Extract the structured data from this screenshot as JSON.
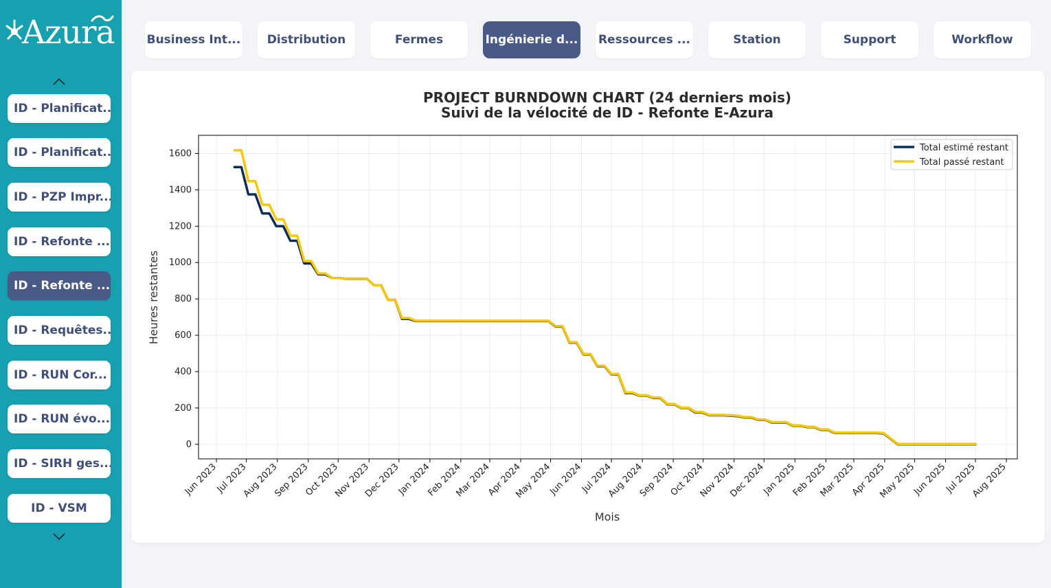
{
  "app": {
    "logo_text": "Azura"
  },
  "sidebar": {
    "items": [
      {
        "label": "ID - Planificat...",
        "active": false
      },
      {
        "label": "ID - Planificat...",
        "active": false
      },
      {
        "label": "ID - PZP Impr...",
        "active": false
      },
      {
        "label": "ID - Refonte ...",
        "active": false
      },
      {
        "label": "ID - Refonte ...",
        "active": true
      },
      {
        "label": "ID - Requêtes...",
        "active": false
      },
      {
        "label": "ID - RUN Cor...",
        "active": false
      },
      {
        "label": "ID - RUN évo...",
        "active": false
      },
      {
        "label": "ID - SIRH ges...",
        "active": false
      },
      {
        "label": "ID - VSM",
        "active": false
      }
    ],
    "scroll_up_icon": "chevron-up-icon",
    "scroll_down_icon": "chevron-down-icon"
  },
  "tabs": [
    {
      "label": "Business Int...",
      "active": false
    },
    {
      "label": "Distribution",
      "active": false
    },
    {
      "label": "Fermes",
      "active": false
    },
    {
      "label": "Ingénierie d...",
      "active": true
    },
    {
      "label": "Ressources ...",
      "active": false
    },
    {
      "label": "Station",
      "active": false
    },
    {
      "label": "Support",
      "active": false
    },
    {
      "label": "Workflow",
      "active": false
    }
  ],
  "colors": {
    "sidebar_bg": "#16a0b0",
    "accent": "#4a5a87",
    "series_estimated": "#0b2d5e",
    "series_past": "#f5c800"
  },
  "chart_data": {
    "type": "line",
    "title": "PROJECT BURNDOWN CHART (24 derniers mois)",
    "subtitle": "Suivi de la vélocité de ID - Refonte E-Azura",
    "xlabel": "Mois",
    "ylabel": "Heures restantes",
    "x_tick_labels": [
      "Jun 2023",
      "Jul 2023",
      "Aug 2023",
      "Sep 2023",
      "Oct 2023",
      "Nov 2023",
      "Dec 2023",
      "Jan 2024",
      "Feb 2024",
      "Mar 2024",
      "Apr 2024",
      "May 2024",
      "Jun 2024",
      "Jul 2024",
      "Aug 2024",
      "Sep 2024",
      "Oct 2024",
      "Nov 2024",
      "Dec 2024",
      "Jan 2025",
      "Feb 2025",
      "Mar 2025",
      "Apr 2025",
      "May 2025",
      "Jun 2025",
      "Jul 2025",
      "Aug 2025"
    ],
    "y_ticks": [
      0,
      200,
      400,
      600,
      800,
      1000,
      1200,
      1400,
      1600
    ],
    "ylim": [
      -80,
      1700
    ],
    "xlim": [
      "2023-05-14",
      "2025-08-12"
    ],
    "grid": true,
    "legend_position": "top-right",
    "series": [
      {
        "name": "Total estimé restant",
        "color": "#0b2d5e",
        "points": [
          [
            "2023-06-19",
            1525
          ],
          [
            "2023-06-26",
            1525
          ],
          [
            "2023-07-03",
            1375
          ],
          [
            "2023-07-10",
            1375
          ],
          [
            "2023-07-17",
            1270
          ],
          [
            "2023-07-24",
            1270
          ],
          [
            "2023-07-31",
            1200
          ],
          [
            "2023-08-07",
            1200
          ],
          [
            "2023-08-14",
            1120
          ],
          [
            "2023-08-21",
            1120
          ],
          [
            "2023-08-28",
            995
          ],
          [
            "2023-09-04",
            995
          ],
          [
            "2023-09-11",
            935
          ],
          [
            "2023-09-18",
            935
          ],
          [
            "2023-09-25",
            915
          ],
          [
            "2023-10-02",
            915
          ],
          [
            "2023-10-09",
            910
          ],
          [
            "2023-10-16",
            910
          ],
          [
            "2023-10-23",
            910
          ],
          [
            "2023-10-30",
            910
          ],
          [
            "2023-11-06",
            875
          ],
          [
            "2023-11-13",
            875
          ],
          [
            "2023-11-20",
            795
          ],
          [
            "2023-11-27",
            795
          ],
          [
            "2023-12-04",
            690
          ],
          [
            "2023-12-11",
            690
          ],
          [
            "2023-12-18",
            678
          ],
          [
            "2024-01-15",
            678
          ],
          [
            "2024-04-29",
            678
          ],
          [
            "2024-05-06",
            648
          ],
          [
            "2024-05-13",
            648
          ],
          [
            "2024-05-20",
            560
          ],
          [
            "2024-05-27",
            560
          ],
          [
            "2024-06-03",
            495
          ],
          [
            "2024-06-10",
            495
          ],
          [
            "2024-06-17",
            430
          ],
          [
            "2024-06-24",
            430
          ],
          [
            "2024-07-01",
            385
          ],
          [
            "2024-07-08",
            385
          ],
          [
            "2024-07-15",
            282
          ],
          [
            "2024-07-22",
            282
          ],
          [
            "2024-07-29",
            268
          ],
          [
            "2024-08-05",
            268
          ],
          [
            "2024-08-12",
            255
          ],
          [
            "2024-08-19",
            255
          ],
          [
            "2024-08-26",
            220
          ],
          [
            "2024-09-02",
            220
          ],
          [
            "2024-09-09",
            200
          ],
          [
            "2024-09-16",
            200
          ],
          [
            "2024-09-23",
            175
          ],
          [
            "2024-09-30",
            175
          ],
          [
            "2024-10-07",
            160
          ],
          [
            "2024-10-14",
            160
          ],
          [
            "2024-10-21",
            160
          ],
          [
            "2024-11-04",
            155
          ],
          [
            "2024-11-11",
            148
          ],
          [
            "2024-11-18",
            148
          ],
          [
            "2024-11-25",
            135
          ],
          [
            "2024-12-02",
            135
          ],
          [
            "2024-12-09",
            120
          ],
          [
            "2024-12-16",
            120
          ],
          [
            "2024-12-23",
            120
          ],
          [
            "2024-12-30",
            102
          ],
          [
            "2025-01-06",
            102
          ],
          [
            "2025-01-13",
            95
          ],
          [
            "2025-01-20",
            95
          ],
          [
            "2025-01-27",
            80
          ],
          [
            "2025-02-03",
            80
          ],
          [
            "2025-02-10",
            62
          ],
          [
            "2025-02-17",
            62
          ],
          [
            "2025-03-24",
            62
          ],
          [
            "2025-03-31",
            60
          ],
          [
            "2025-04-14",
            0
          ],
          [
            "2025-07-01",
            0
          ]
        ]
      },
      {
        "name": "Total passé restant",
        "color": "#f5c800",
        "points": [
          [
            "2023-06-19",
            1618
          ],
          [
            "2023-06-26",
            1618
          ],
          [
            "2023-07-03",
            1448
          ],
          [
            "2023-07-10",
            1448
          ],
          [
            "2023-07-17",
            1318
          ],
          [
            "2023-07-24",
            1318
          ],
          [
            "2023-07-31",
            1238
          ],
          [
            "2023-08-07",
            1238
          ],
          [
            "2023-08-14",
            1148
          ],
          [
            "2023-08-21",
            1148
          ],
          [
            "2023-08-28",
            1008
          ],
          [
            "2023-09-04",
            1008
          ],
          [
            "2023-09-11",
            940
          ],
          [
            "2023-09-18",
            940
          ],
          [
            "2023-09-25",
            915
          ],
          [
            "2023-10-02",
            915
          ],
          [
            "2023-10-09",
            910
          ],
          [
            "2023-10-16",
            910
          ],
          [
            "2023-10-23",
            910
          ],
          [
            "2023-10-30",
            910
          ],
          [
            "2023-11-06",
            875
          ],
          [
            "2023-11-13",
            875
          ],
          [
            "2023-11-20",
            795
          ],
          [
            "2023-11-27",
            795
          ],
          [
            "2023-12-04",
            695
          ],
          [
            "2023-12-11",
            695
          ],
          [
            "2023-12-18",
            680
          ],
          [
            "2024-01-15",
            680
          ],
          [
            "2024-04-29",
            680
          ],
          [
            "2024-05-06",
            650
          ],
          [
            "2024-05-13",
            650
          ],
          [
            "2024-05-20",
            562
          ],
          [
            "2024-05-27",
            562
          ],
          [
            "2024-06-03",
            497
          ],
          [
            "2024-06-10",
            497
          ],
          [
            "2024-06-17",
            432
          ],
          [
            "2024-06-24",
            432
          ],
          [
            "2024-07-01",
            387
          ],
          [
            "2024-07-08",
            387
          ],
          [
            "2024-07-15",
            285
          ],
          [
            "2024-07-22",
            285
          ],
          [
            "2024-07-29",
            270
          ],
          [
            "2024-08-05",
            270
          ],
          [
            "2024-08-12",
            257
          ],
          [
            "2024-08-19",
            257
          ],
          [
            "2024-08-26",
            222
          ],
          [
            "2024-09-02",
            222
          ],
          [
            "2024-09-09",
            202
          ],
          [
            "2024-09-16",
            202
          ],
          [
            "2024-09-23",
            178
          ],
          [
            "2024-09-30",
            178
          ],
          [
            "2024-10-07",
            162
          ],
          [
            "2024-10-14",
            162
          ],
          [
            "2024-10-21",
            162
          ],
          [
            "2024-11-04",
            158
          ],
          [
            "2024-11-11",
            150
          ],
          [
            "2024-11-18",
            150
          ],
          [
            "2024-11-25",
            137
          ],
          [
            "2024-12-02",
            137
          ],
          [
            "2024-12-09",
            122
          ],
          [
            "2024-12-16",
            122
          ],
          [
            "2024-12-23",
            122
          ],
          [
            "2024-12-30",
            104
          ],
          [
            "2025-01-06",
            104
          ],
          [
            "2025-01-13",
            97
          ],
          [
            "2025-01-20",
            97
          ],
          [
            "2025-01-27",
            82
          ],
          [
            "2025-02-03",
            82
          ],
          [
            "2025-02-10",
            64
          ],
          [
            "2025-02-17",
            64
          ],
          [
            "2025-03-24",
            64
          ],
          [
            "2025-03-31",
            62
          ],
          [
            "2025-04-14",
            2
          ],
          [
            "2025-07-01",
            2
          ]
        ]
      }
    ]
  }
}
